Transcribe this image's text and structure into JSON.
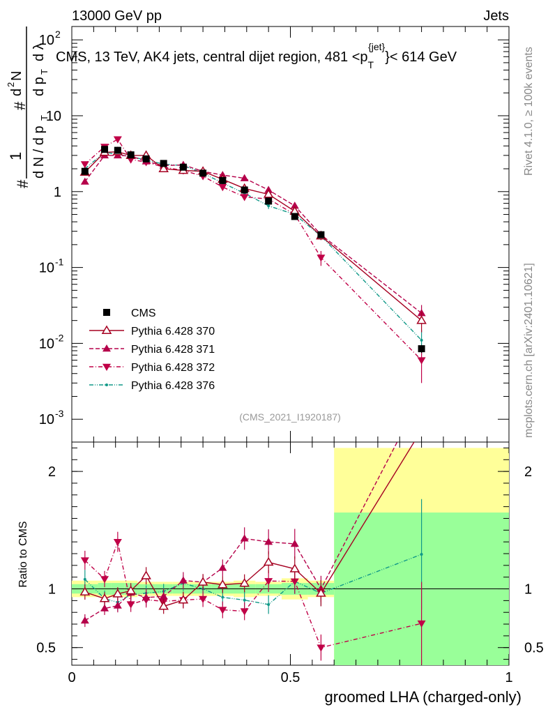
{
  "header": {
    "left": "13000 GeV pp",
    "right": "Jets"
  },
  "side": {
    "top": "Rivet 4.1.0, ≥ 100k events",
    "bottom": "mcplots.cern.ch [arXiv:2401.10621]"
  },
  "chart_data": {
    "type": "line",
    "title_prefix": "CMS, 13 TeV, AK4 jets, central dijet region, 481 <p",
    "title_sub": "T",
    "title_sup": "{jet}",
    "title_suffix": "}< 614 GeV",
    "analysis_id": "(CMS_2021_I1920187)",
    "xlabel": "groomed LHA (charged-only)",
    "ylabel_top": "1/N dN/dp_T d²N/dp_T dλ",
    "ylabel_ratio": "Ratio to CMS",
    "xlim": [
      0,
      1
    ],
    "ylim_main": [
      0.0005,
      150
    ],
    "ylim_ratio": [
      0.35,
      2.25
    ],
    "x_ticks": [
      {
        "v": 0,
        "label": "0"
      },
      {
        "v": 0.5,
        "label": "0.5"
      },
      {
        "v": 1,
        "label": "1"
      }
    ],
    "y_ticks_main": [
      {
        "v": 0.001,
        "base": "10",
        "exp": "-3"
      },
      {
        "v": 0.01,
        "base": "10",
        "exp": "-2"
      },
      {
        "v": 0.1,
        "base": "10",
        "exp": "-1"
      },
      {
        "v": 1,
        "base": "1",
        "exp": ""
      },
      {
        "v": 10,
        "base": "10",
        "exp": ""
      },
      {
        "v": 100,
        "base": "10",
        "exp": "2"
      }
    ],
    "y_ticks_ratio": [
      {
        "v": 0.5,
        "label": "0.5"
      },
      {
        "v": 1,
        "label": "1"
      },
      {
        "v": 2,
        "label": "2"
      }
    ],
    "bin_edges": [
      0,
      0.06,
      0.09,
      0.12,
      0.15,
      0.19,
      0.23,
      0.28,
      0.32,
      0.37,
      0.42,
      0.48,
      0.54,
      0.6,
      1.0
    ],
    "x": [
      0.03,
      0.075,
      0.105,
      0.135,
      0.17,
      0.21,
      0.255,
      0.3,
      0.345,
      0.395,
      0.45,
      0.51,
      0.57,
      0.8
    ],
    "ratio_band_inner": [
      0.04,
      0.05,
      0.05,
      0.05,
      0.04,
      0.04,
      0.04,
      0.04,
      0.04,
      0.04,
      0.04,
      0.05,
      0.05,
      0.65
    ],
    "ratio_band_outer": [
      0.07,
      0.07,
      0.07,
      0.07,
      0.06,
      0.06,
      0.06,
      0.06,
      0.06,
      0.07,
      0.06,
      0.09,
      0.07,
      1.2
    ],
    "series": [
      {
        "name": "CMS",
        "style": "data",
        "color": "#000000",
        "marker": "square",
        "values": [
          1.85,
          3.6,
          3.5,
          3.05,
          2.7,
          2.35,
          2.1,
          1.75,
          1.4,
          1.05,
          0.75,
          0.47,
          0.27,
          0.0085
        ],
        "errors": [
          0.1,
          0.15,
          0.15,
          0.12,
          0.1,
          0.1,
          0.08,
          0.07,
          0.06,
          0.05,
          0.04,
          0.03,
          0.02,
          0.001
        ]
      },
      {
        "name": "Pythia 6.428 370",
        "style": "solid",
        "color": "#a50021",
        "marker": "triangle-up-open",
        "values": [
          1.8,
          3.3,
          3.35,
          3.0,
          3.0,
          2.0,
          1.9,
          1.85,
          1.45,
          1.1,
          0.92,
          0.55,
          0.26,
          0.02
        ],
        "errors": [
          0.12,
          0.2,
          0.2,
          0.2,
          0.2,
          0.15,
          0.15,
          0.12,
          0.1,
          0.08,
          0.07,
          0.05,
          0.03,
          0.006
        ]
      },
      {
        "name": "Pythia 6.428 371",
        "style": "dashed",
        "color": "#b5004a",
        "marker": "triangle-up",
        "values": [
          1.35,
          3.0,
          3.0,
          2.95,
          2.5,
          2.2,
          2.25,
          1.85,
          1.65,
          1.5,
          1.05,
          0.65,
          0.27,
          0.025
        ],
        "errors": [
          0.1,
          0.2,
          0.2,
          0.2,
          0.2,
          0.15,
          0.15,
          0.12,
          0.1,
          0.1,
          0.08,
          0.06,
          0.03,
          0.007
        ]
      },
      {
        "name": "Pythia 6.428 372",
        "style": "dashdot",
        "color": "#c00047",
        "marker": "triangle-down",
        "values": [
          2.3,
          3.9,
          4.9,
          2.65,
          2.45,
          2.1,
          1.9,
          1.6,
          1.15,
          0.85,
          0.8,
          0.5,
          0.135,
          0.006
        ],
        "errors": [
          0.15,
          0.25,
          0.3,
          0.2,
          0.18,
          0.15,
          0.14,
          0.12,
          0.1,
          0.08,
          0.07,
          0.05,
          0.03,
          0.003
        ]
      },
      {
        "name": "Pythia 6.428 376",
        "style": "dashdotdot",
        "color": "#119988",
        "marker": "dot",
        "values": [
          2.0,
          3.3,
          3.1,
          2.9,
          2.6,
          2.3,
          2.2,
          1.75,
          1.3,
          0.95,
          0.65,
          0.5,
          0.26,
          0.011
        ],
        "errors": [
          0.15,
          0.25,
          0.25,
          0.2,
          0.18,
          0.15,
          0.14,
          0.12,
          0.1,
          0.08,
          0.06,
          0.05,
          0.03,
          0.004
        ]
      }
    ]
  }
}
